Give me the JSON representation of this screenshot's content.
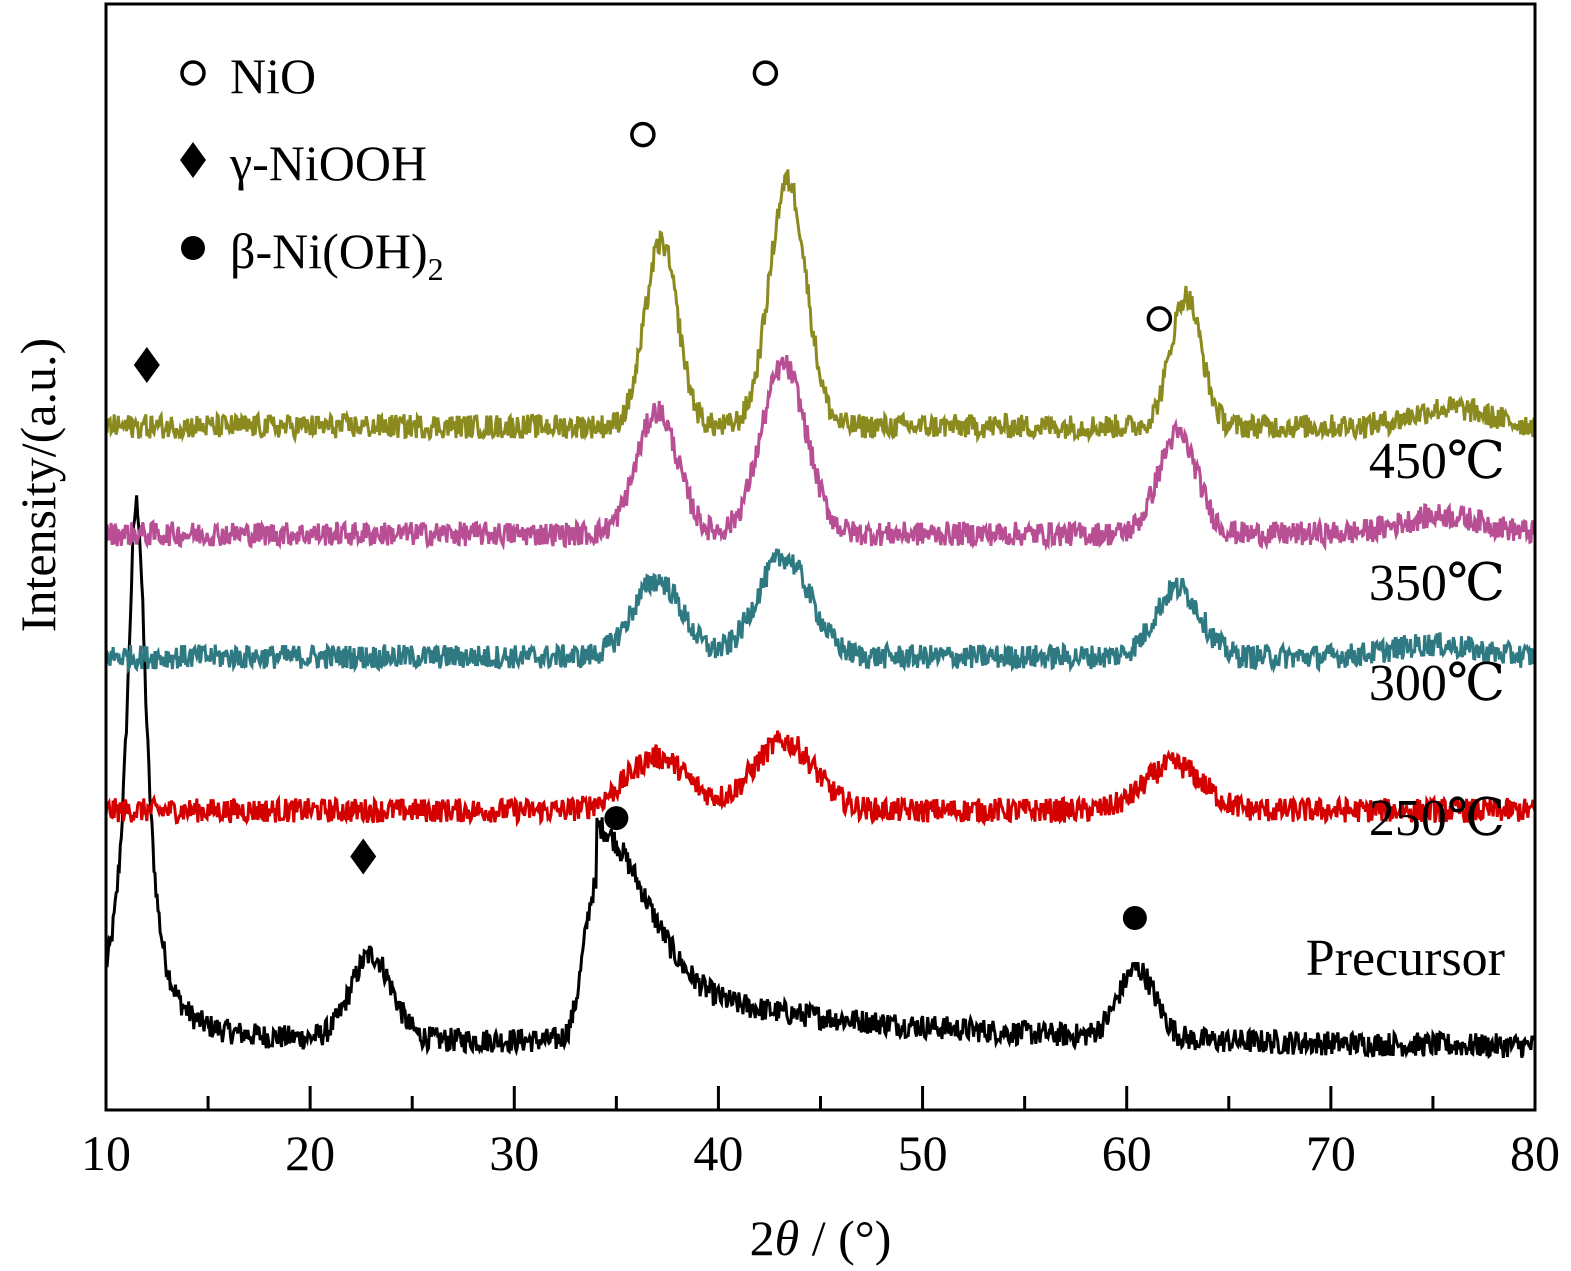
{
  "chart_data": {
    "type": "line",
    "xlabel_prefix": "2",
    "xlabel_theta": "θ",
    "xlabel_suffix": " / (°)",
    "ylabel": "Intensity/(a.u.)",
    "xlim": [
      10,
      80
    ],
    "x_ticks_major": [
      "10",
      "20",
      "30",
      "40",
      "50",
      "60",
      "70",
      "80"
    ],
    "legend": [
      {
        "marker": "open-circle",
        "label": "NiO"
      },
      {
        "marker": "diamond",
        "label": "γ-NiOOH"
      },
      {
        "marker": "filled-circle",
        "label": "β-Ni(OH)",
        "subscript": "2"
      }
    ],
    "series": [
      {
        "name": "Precursor",
        "label": "Precursor",
        "color": "#000000",
        "baseline": 0.0,
        "baseline_shape": "decaying",
        "peaks": [
          {
            "x": 11.5,
            "height": 3.5,
            "width": 0.6,
            "shape": "sharp"
          },
          {
            "x": 23.0,
            "height": 0.55,
            "width": 1.0
          },
          {
            "x": 34.0,
            "height": 1.0,
            "width": 0.6,
            "shape": "asym"
          },
          {
            "x": 60.5,
            "height": 0.45,
            "width": 0.9
          }
        ]
      },
      {
        "name": "250℃",
        "label": "250℃",
        "color": "#d40000",
        "baseline": 1.55,
        "peaks": [
          {
            "x": 37.0,
            "height": 0.35,
            "width": 1.5
          },
          {
            "x": 43.2,
            "height": 0.45,
            "width": 1.5
          },
          {
            "x": 62.3,
            "height": 0.3,
            "width": 1.4
          }
        ]
      },
      {
        "name": "300℃",
        "label": "300℃",
        "color": "#2f7a82",
        "baseline": 2.55,
        "peaks": [
          {
            "x": 37.0,
            "height": 0.5,
            "width": 1.2
          },
          {
            "x": 43.2,
            "height": 0.65,
            "width": 1.3
          },
          {
            "x": 62.5,
            "height": 0.45,
            "width": 1.1
          },
          {
            "x": 75.0,
            "height": 0.08,
            "width": 2.0
          }
        ]
      },
      {
        "name": "350℃",
        "label": "350℃",
        "color": "#b84f95",
        "baseline": 3.35,
        "peaks": [
          {
            "x": 37.0,
            "height": 0.8,
            "width": 1.0
          },
          {
            "x": 43.2,
            "height": 1.1,
            "width": 1.1
          },
          {
            "x": 62.5,
            "height": 0.65,
            "width": 0.95
          },
          {
            "x": 75.5,
            "height": 0.12,
            "width": 2.0
          }
        ]
      },
      {
        "name": "450℃",
        "label": "450℃",
        "color": "#8a8a1e",
        "baseline": 4.05,
        "peaks": [
          {
            "x": 37.2,
            "height": 1.2,
            "width": 0.8
          },
          {
            "x": 43.4,
            "height": 1.6,
            "width": 0.9
          },
          {
            "x": 62.9,
            "height": 0.85,
            "width": 0.75
          },
          {
            "x": 75.8,
            "height": 0.12,
            "width": 1.8
          }
        ]
      }
    ],
    "markers": [
      {
        "type": "open-circle",
        "x": 36.3,
        "y": 5.95
      },
      {
        "type": "open-circle",
        "x": 42.3,
        "y": 6.35
      },
      {
        "type": "open-circle",
        "x": 61.6,
        "y": 4.75
      },
      {
        "type": "diamond",
        "x": 12.0,
        "y": 4.45
      },
      {
        "type": "diamond",
        "x": 22.6,
        "y": 1.25
      },
      {
        "type": "filled-circle",
        "x": 35.0,
        "y": 1.5
      },
      {
        "type": "filled-circle",
        "x": 60.4,
        "y": 0.85
      }
    ]
  }
}
